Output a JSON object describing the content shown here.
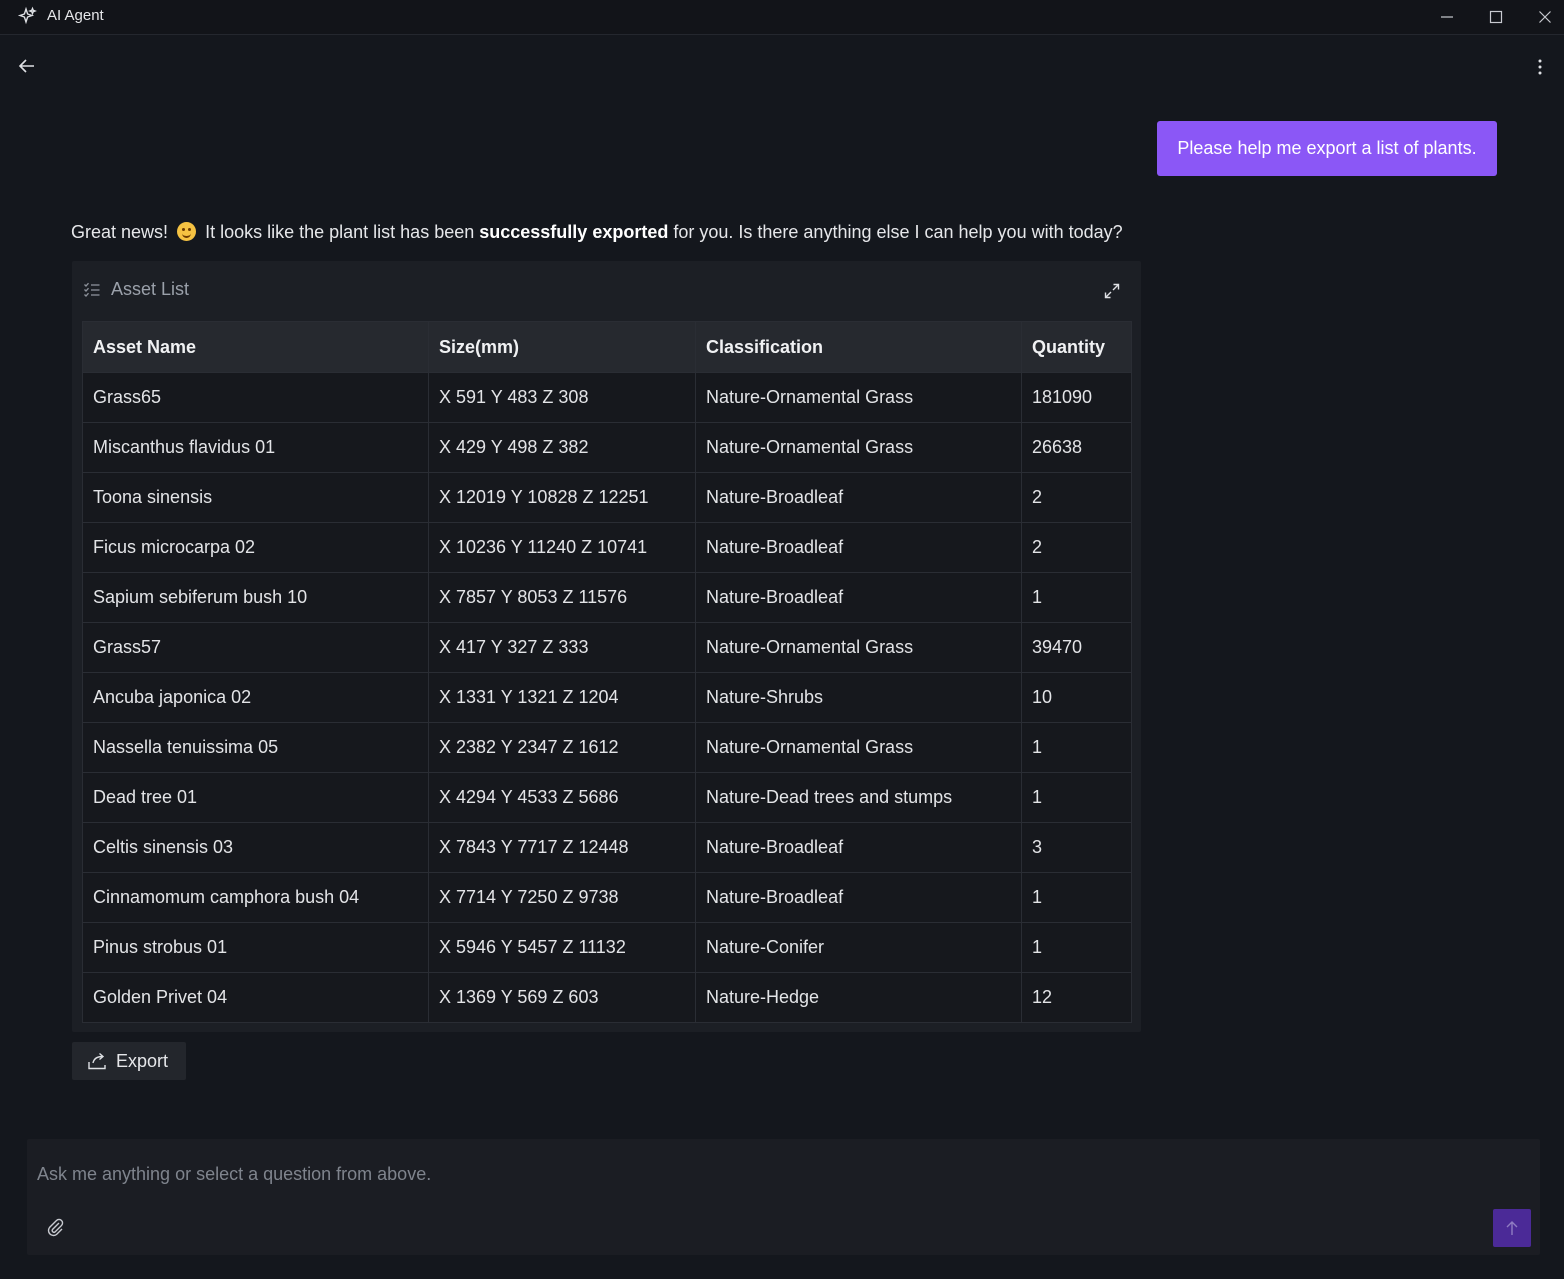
{
  "window": {
    "title": "AI Agent",
    "icons": {
      "app": "sparkle-icon",
      "minimize": "minimize-icon",
      "maximize": "maximize-icon",
      "close": "close-icon"
    }
  },
  "topbar": {
    "back_icon": "arrow-left-icon",
    "more_icon": "more-vertical-icon"
  },
  "chat": {
    "user_message": "Please help me export a list of plants.",
    "reply": {
      "before": "Great news!",
      "emoji": "smiling-face-icon",
      "middle": "It looks like the plant list has been",
      "bold": "successfully exported",
      "after": "for you. Is there anything else I can help you with today?"
    }
  },
  "asset_list": {
    "title": "Asset List",
    "icon": "list-check-icon",
    "expand_icon": "expand-icon",
    "columns": [
      "Asset Name",
      "Size(mm)",
      "Classification",
      "Quantity"
    ],
    "rows": [
      [
        "Grass65",
        "X 591 Y 483 Z 308",
        "Nature-Ornamental Grass",
        "181090"
      ],
      [
        "Miscanthus flavidus 01",
        "X 429 Y 498 Z 382",
        "Nature-Ornamental Grass",
        "26638"
      ],
      [
        "Toona sinensis",
        "X 12019 Y 10828 Z 12251",
        "Nature-Broadleaf",
        "2"
      ],
      [
        "Ficus microcarpa 02",
        "X 10236 Y 11240 Z 10741",
        "Nature-Broadleaf",
        "2"
      ],
      [
        "Sapium sebiferum bush 10",
        "X 7857 Y 8053 Z 11576",
        "Nature-Broadleaf",
        "1"
      ],
      [
        "Grass57",
        "X 417 Y 327 Z 333",
        "Nature-Ornamental Grass",
        "39470"
      ],
      [
        "Ancuba japonica 02",
        "X 1331 Y 1321 Z 1204",
        "Nature-Shrubs",
        "10"
      ],
      [
        "Nassella tenuissima 05",
        "X 2382 Y 2347 Z 1612",
        "Nature-Ornamental Grass",
        "1"
      ],
      [
        "Dead tree 01",
        "X 4294 Y 4533 Z 5686",
        "Nature-Dead trees and stumps",
        "1"
      ],
      [
        "Celtis sinensis 03",
        "X 7843 Y 7717 Z 12448",
        "Nature-Broadleaf",
        "3"
      ],
      [
        "Cinnamomum camphora bush 04",
        "X 7714 Y 7250 Z 9738",
        "Nature-Broadleaf",
        "1"
      ],
      [
        "Pinus strobus 01",
        "X 5946 Y 5457 Z 11132",
        "Nature-Conifer",
        "1"
      ],
      [
        "Golden Privet 04",
        "X 1369 Y 569 Z 603",
        "Nature-Hedge",
        "12"
      ]
    ]
  },
  "export_button": {
    "label": "Export",
    "icon": "share-export-icon"
  },
  "composer": {
    "placeholder": "Ask me anything or select a question from above.",
    "attach_icon": "paperclip-icon",
    "send_icon": "arrow-up-icon"
  },
  "colors": {
    "accent": "#8b57f6",
    "send": "#4b2a97",
    "background": "#14171d"
  }
}
